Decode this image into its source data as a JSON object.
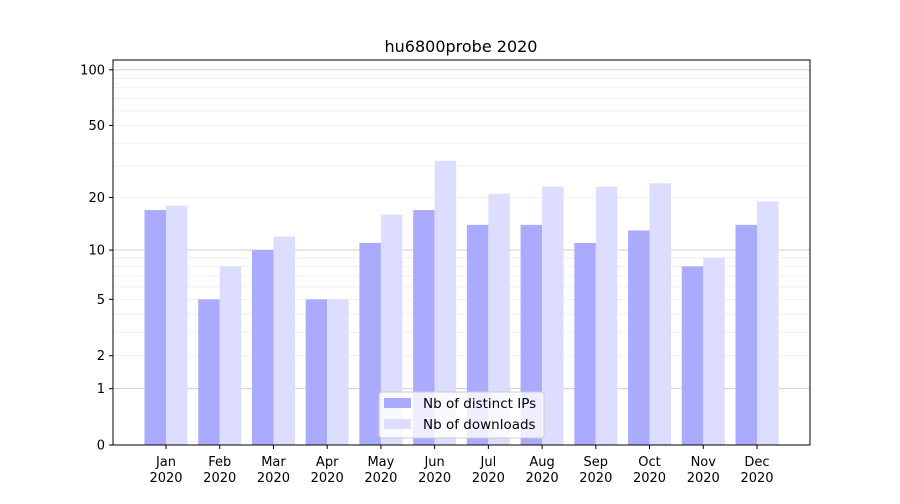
{
  "chart_data": {
    "type": "bar",
    "title": "hu6800probe 2020",
    "xlabel": "",
    "ylabel": "",
    "yscale": "log(1+y)",
    "ylim": [
      0,
      113
    ],
    "yticks": [
      0,
      1,
      2,
      5,
      10,
      20,
      50,
      100
    ],
    "grid": true,
    "legend_position": "bottom-center",
    "categories": [
      "Jan\n2020",
      "Feb\n2020",
      "Mar\n2020",
      "Apr\n2020",
      "May\n2020",
      "Jun\n2020",
      "Jul\n2020",
      "Aug\n2020",
      "Sep\n2020",
      "Oct\n2020",
      "Nov\n2020",
      "Dec\n2020"
    ],
    "series": [
      {
        "name": "Nb of distinct IPs",
        "color": "#aaaaff",
        "values": [
          17,
          5,
          10,
          5,
          11,
          17,
          14,
          14,
          11,
          13,
          8,
          14
        ]
      },
      {
        "name": "Nb of downloads",
        "color": "#ddddff",
        "values": [
          18,
          8,
          12,
          5,
          16,
          32,
          21,
          23,
          23,
          24,
          9,
          19
        ]
      }
    ]
  }
}
